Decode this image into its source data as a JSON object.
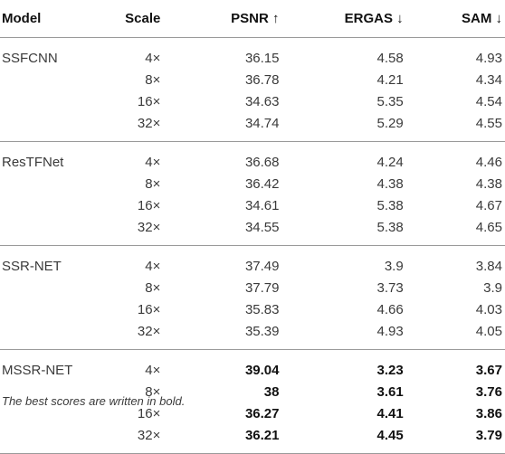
{
  "headers": {
    "model": "Model",
    "scale": "Scale",
    "psnr": "PSNR ↑",
    "ergas": "ERGAS ↓",
    "sam": "SAM ↓"
  },
  "groups": [
    {
      "model": "SSFCNN",
      "rows": [
        {
          "scale": "4×",
          "psnr": "36.15",
          "ergas": "4.58",
          "sam": "4.93"
        },
        {
          "scale": "8×",
          "psnr": "36.78",
          "ergas": "4.21",
          "sam": "4.34"
        },
        {
          "scale": "16×",
          "psnr": "34.63",
          "ergas": "5.35",
          "sam": "4.54"
        },
        {
          "scale": "32×",
          "psnr": "34.74",
          "ergas": "5.29",
          "sam": "4.55"
        }
      ]
    },
    {
      "model": "ResTFNet",
      "rows": [
        {
          "scale": "4×",
          "psnr": "36.68",
          "ergas": "4.24",
          "sam": "4.46"
        },
        {
          "scale": "8×",
          "psnr": "36.42",
          "ergas": "4.38",
          "sam": "4.38"
        },
        {
          "scale": "16×",
          "psnr": "34.61",
          "ergas": "5.38",
          "sam": "4.67"
        },
        {
          "scale": "32×",
          "psnr": "34.55",
          "ergas": "5.38",
          "sam": "4.65"
        }
      ]
    },
    {
      "model": "SSR-NET",
      "rows": [
        {
          "scale": "4×",
          "psnr": "37.49",
          "ergas": "3.9",
          "sam": "3.84"
        },
        {
          "scale": "8×",
          "psnr": "37.79",
          "ergas": "3.73",
          "sam": "3.9"
        },
        {
          "scale": "16×",
          "psnr": "35.83",
          "ergas": "4.66",
          "sam": "4.03"
        },
        {
          "scale": "32×",
          "psnr": "35.39",
          "ergas": "4.93",
          "sam": "4.05"
        }
      ]
    },
    {
      "model": "MSSR-NET",
      "bold": true,
      "rows": [
        {
          "scale": "4×",
          "psnr": "39.04",
          "ergas": "3.23",
          "sam": "3.67"
        },
        {
          "scale": "8×",
          "psnr": "38",
          "ergas": "3.61",
          "sam": "3.76"
        },
        {
          "scale": "16×",
          "psnr": "36.27",
          "ergas": "4.41",
          "sam": "3.86"
        },
        {
          "scale": "32×",
          "psnr": "36.21",
          "ergas": "4.45",
          "sam": "3.79"
        }
      ]
    }
  ],
  "footnote": "The best scores are written in bold."
}
